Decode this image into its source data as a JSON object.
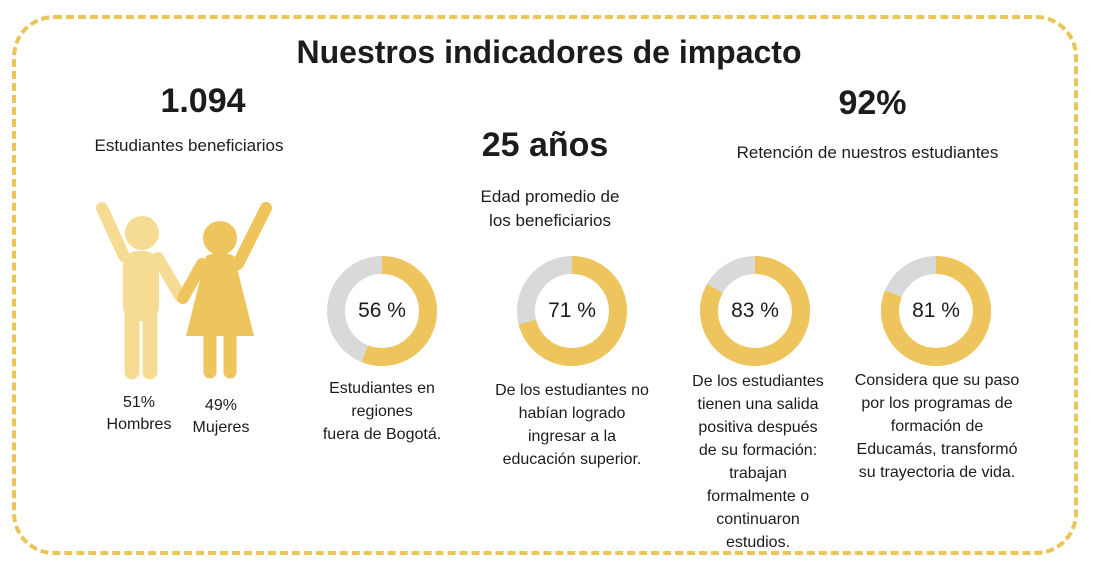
{
  "title": "Nuestros indicadores de impacto",
  "colors": {
    "accent": "#ebc45a",
    "accent_dark": "#eec55c",
    "accent_light": "#f6dc92",
    "track": "#d9d9d9"
  },
  "stat1": {
    "value": "1.094",
    "label": "Estudiantes beneficiarios"
  },
  "stat2": {
    "value": "25 años",
    "label": "Edad promedio de\nlos beneficiarios"
  },
  "stat3": {
    "value": "92%",
    "label": "Retención de nuestros estudiantes"
  },
  "gender": {
    "men": {
      "percent": "51%",
      "label": "Hombres"
    },
    "women": {
      "percent": "49%",
      "label": "Mujeres"
    }
  },
  "donuts": [
    {
      "value": 56,
      "text": "56 %",
      "description": "Estudiantes en\nregiones\nfuera de Bogotá."
    },
    {
      "value": 71,
      "text": "71 %",
      "description": "De los estudiantes no\nhabían logrado\ningresar a la\neducación superior."
    },
    {
      "value": 83,
      "text": "83 %",
      "description": "De los estudiantes\ntienen una salida\npositiva después\nde su formación:\ntrabajan\nformalmente o\ncontinuaron\nestudios."
    },
    {
      "value": 81,
      "text": "81 %",
      "description": "Considera que su paso\npor los programas de\nformación de\nEducamás, transformó\nsu trayectoria de vida."
    }
  ]
}
